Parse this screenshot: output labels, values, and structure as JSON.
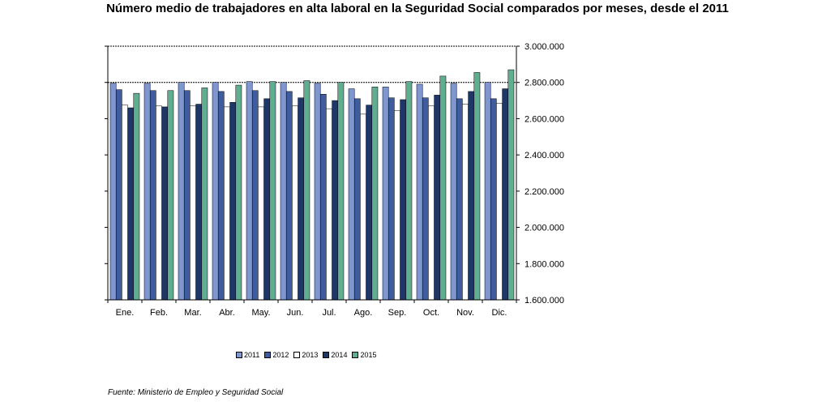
{
  "title": "Número medio de trabajadores en alta laboral en la Seguridad Social comparados por meses, desde el 2011",
  "source": "Fuente: Ministerio de Empleo y Seguridad Social",
  "colors": {
    "2011": "#7f96cf",
    "2012": "#3f5c9e",
    "2013": "#ffffff",
    "2014": "#1f3766",
    "2015": "#5fae8f"
  },
  "chart_data": {
    "type": "bar",
    "title": "Número medio de trabajadores en alta laboral en la Seguridad Social comparados por meses, desde el 2011",
    "categories": [
      "Ene.",
      "Feb.",
      "Mar.",
      "Abr.",
      "May.",
      "Jun.",
      "Jul.",
      "Ago.",
      "Sep.",
      "Oct.",
      "Nov.",
      "Dic."
    ],
    "ylim": [
      1600000,
      3000000
    ],
    "yticks": [
      1600000,
      1800000,
      2000000,
      2200000,
      2400000,
      2600000,
      2800000,
      3000000
    ],
    "ytick_labels": [
      "1.600.000",
      "1.800.000",
      "2.000.000",
      "2.200.000",
      "2.400.000",
      "2.600.000",
      "2.800.000",
      "3.000.000"
    ],
    "legend_position": "bottom",
    "grid": "dashed horizontal lines at 2.800.000 and 3.000.000",
    "series": [
      {
        "name": "2011",
        "values": [
          2795000,
          2795000,
          2800000,
          2800000,
          2805000,
          2800000,
          2795000,
          2765000,
          2775000,
          2790000,
          2795000,
          2800000
        ]
      },
      {
        "name": "2012",
        "values": [
          2760000,
          2755000,
          2755000,
          2750000,
          2755000,
          2750000,
          2735000,
          2710000,
          2715000,
          2715000,
          2710000,
          2710000
        ]
      },
      {
        "name": "2013",
        "values": [
          2675000,
          2670000,
          2670000,
          2665000,
          2665000,
          2670000,
          2655000,
          2625000,
          2645000,
          2670000,
          2680000,
          2685000
        ]
      },
      {
        "name": "2014",
        "values": [
          2660000,
          2665000,
          2680000,
          2690000,
          2710000,
          2715000,
          2700000,
          2675000,
          2705000,
          2730000,
          2750000,
          2765000
        ]
      },
      {
        "name": "2015",
        "values": [
          2740000,
          2755000,
          2770000,
          2785000,
          2805000,
          2810000,
          2800000,
          2775000,
          2805000,
          2835000,
          2855000,
          2870000
        ]
      }
    ]
  }
}
